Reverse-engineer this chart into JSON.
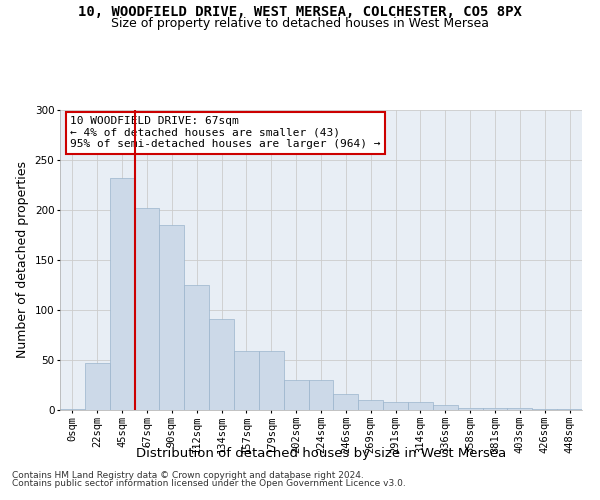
{
  "title_line1": "10, WOODFIELD DRIVE, WEST MERSEA, COLCHESTER, CO5 8PX",
  "title_line2": "Size of property relative to detached houses in West Mersea",
  "xlabel": "Distribution of detached houses by size in West Mersea",
  "ylabel": "Number of detached properties",
  "bar_labels": [
    "0sqm",
    "22sqm",
    "45sqm",
    "67sqm",
    "90sqm",
    "112sqm",
    "134sqm",
    "157sqm",
    "179sqm",
    "202sqm",
    "224sqm",
    "246sqm",
    "269sqm",
    "291sqm",
    "314sqm",
    "336sqm",
    "358sqm",
    "381sqm",
    "403sqm",
    "426sqm",
    "448sqm"
  ],
  "bar_values": [
    1,
    47,
    232,
    202,
    185,
    125,
    91,
    59,
    59,
    30,
    30,
    16,
    10,
    8,
    8,
    5,
    2,
    2,
    2,
    1,
    1
  ],
  "bar_color": "#ccd9e8",
  "bar_edge_color": "#9ab4cc",
  "vline_x_idx": 3,
  "vline_color": "#cc0000",
  "annotation_text": "10 WOODFIELD DRIVE: 67sqm\n← 4% of detached houses are smaller (43)\n95% of semi-detached houses are larger (964) →",
  "annotation_box_color": "#ffffff",
  "annotation_box_edge": "#cc0000",
  "ylim": [
    0,
    300
  ],
  "yticks": [
    0,
    50,
    100,
    150,
    200,
    250,
    300
  ],
  "grid_color": "#cccccc",
  "bg_color": "#e8eef5",
  "footer_line1": "Contains HM Land Registry data © Crown copyright and database right 2024.",
  "footer_line2": "Contains public sector information licensed under the Open Government Licence v3.0.",
  "title_fontsize": 10,
  "subtitle_fontsize": 9,
  "axis_label_fontsize": 9,
  "tick_fontsize": 7.5,
  "annotation_fontsize": 8,
  "footer_fontsize": 6.5
}
